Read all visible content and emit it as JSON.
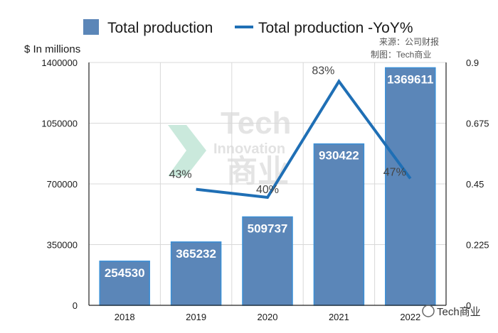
{
  "legend": {
    "bars_label": "Total production",
    "line_label": "Total production -YoY%"
  },
  "axis_unit": "$ In millions",
  "source_lines": [
    "来源：公司财报",
    "制图：Tech商业"
  ],
  "watermark": {
    "main": "Tech",
    "sub": "Innovation",
    "cn": "商业"
  },
  "brand": "Tech商业",
  "colors": {
    "bar": "#5b86b8",
    "bar_edge": "#3a8fd6",
    "line": "#1f6fb5"
  },
  "chart_data": {
    "type": "bar",
    "categories": [
      "2018",
      "2019",
      "2020",
      "2021",
      "2022"
    ],
    "series": [
      {
        "name": "Total production",
        "type": "bar",
        "axis": "left",
        "values": [
          254530,
          365232,
          509737,
          930422,
          1369611
        ],
        "labels": [
          "254530",
          "365232",
          "509737",
          "930422",
          "1369611"
        ]
      },
      {
        "name": "Total production -YoY%",
        "type": "line",
        "axis": "right",
        "values": [
          null,
          0.43,
          0.4,
          0.83,
          0.47
        ],
        "labels": [
          "",
          "43%",
          "40%",
          "83%",
          "47%"
        ]
      }
    ],
    "y_left": {
      "lim": [
        0,
        1400000
      ],
      "ticks": [
        "0",
        "350000",
        "700000",
        "1050000",
        "1400000"
      ]
    },
    "y_right": {
      "lim": [
        0,
        0.9
      ],
      "ticks": [
        "0",
        "0.225",
        "0.45",
        "0.675",
        "0.9"
      ]
    },
    "grid": true,
    "legend_position": "top"
  }
}
